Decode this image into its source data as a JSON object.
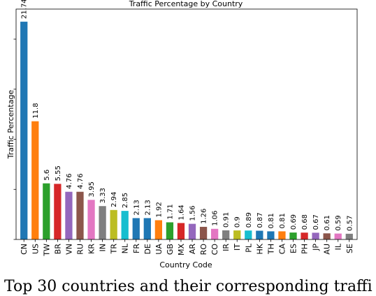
{
  "chart_data": {
    "type": "bar",
    "title": "Traffic Percentage by Country",
    "xlabel": "Country Code",
    "ylabel": "Traffic Percentage",
    "categories": [
      "CN",
      "US",
      "TW",
      "BR",
      "VN",
      "RU",
      "KR",
      "IN",
      "TR",
      "NL",
      "FR",
      "DE",
      "UA",
      "GB",
      "MX",
      "AR",
      "RO",
      "CO",
      "IR",
      "IT",
      "PL",
      "HK",
      "TH",
      "CA",
      "ES",
      "PH",
      "JP",
      "AU",
      "IL",
      "SE"
    ],
    "values": [
      21.74,
      11.8,
      5.6,
      5.55,
      4.76,
      4.76,
      3.95,
      3.33,
      2.94,
      2.85,
      2.13,
      2.13,
      1.92,
      1.71,
      1.64,
      1.56,
      1.26,
      1.06,
      0.91,
      0.9,
      0.89,
      0.87,
      0.81,
      0.81,
      0.69,
      0.68,
      0.67,
      0.61,
      0.59,
      0.57
    ],
    "value_labels": [
      "21.74",
      "11.8",
      "5.6",
      "5.55",
      "4.76",
      "4.76",
      "3.95",
      "3.33",
      "2.94",
      "2.85",
      "2.13",
      "2.13",
      "1.92",
      "1.71",
      "1.64",
      "1.56",
      "1.26",
      "1.06",
      "0.91",
      "0.9",
      "0.89",
      "0.87",
      "0.81",
      "0.81",
      "0.69",
      "0.68",
      "0.67",
      "0.61",
      "0.59",
      "0.57"
    ],
    "colors": [
      "#1f77b4",
      "#ff7f0e",
      "#2ca02c",
      "#d62728",
      "#9467bd",
      "#8c564b",
      "#e377c2",
      "#7f7f7f",
      "#bcbd22",
      "#17becf",
      "#1f77b4",
      "#1f77b4",
      "#ff7f0e",
      "#2ca02c",
      "#d62728",
      "#9467bd",
      "#8c564b",
      "#e377c2",
      "#7f7f7f",
      "#bcbd22",
      "#17becf",
      "#1f77b4",
      "#1f77b4",
      "#ff7f0e",
      "#2ca02c",
      "#d62728",
      "#9467bd",
      "#8c564b",
      "#e377c2",
      "#7f7f7f"
    ],
    "ylim": [
      0,
      23.0
    ],
    "grid": false,
    "legend": false
  },
  "caption": "Top 30 countries and their corresponding traffi"
}
